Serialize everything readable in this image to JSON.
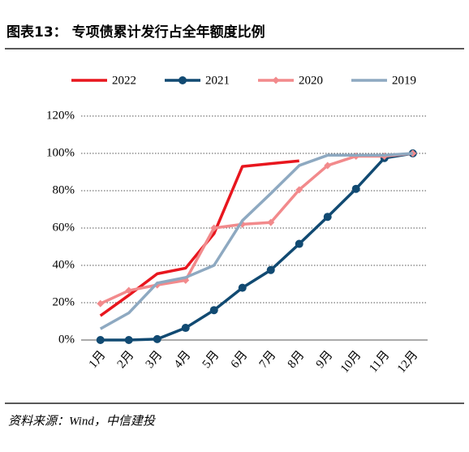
{
  "chart_data": {
    "type": "line",
    "title": "图表13：  专项债累计发行占全年额度比例",
    "source": "资料来源：Wind，中信建投",
    "categories": [
      "1月",
      "2月",
      "3月",
      "4月",
      "5月",
      "6月",
      "7月",
      "8月",
      "9月",
      "10月",
      "11月",
      "12月"
    ],
    "series": [
      {
        "name": "2022",
        "color": "#e8161e",
        "marker": "none",
        "values": [
          13,
          24,
          35.5,
          38.5,
          57,
          93,
          94.5,
          96,
          null,
          null,
          null,
          null
        ]
      },
      {
        "name": "2021",
        "color": "#114a72",
        "marker": "circle",
        "values": [
          0,
          0,
          0.5,
          6.5,
          16,
          28,
          37.5,
          51.5,
          66,
          81,
          97.5,
          100
        ]
      },
      {
        "name": "2020",
        "color": "#f28a8c",
        "marker": "diamond",
        "values": [
          19.5,
          26.5,
          29.5,
          32,
          60,
          62,
          63,
          80.5,
          93.5,
          98.5,
          98.5,
          100
        ]
      },
      {
        "name": "2019",
        "color": "#8ea9c1",
        "marker": "none",
        "values": [
          6,
          14.5,
          30.5,
          33.5,
          40,
          64,
          78.5,
          93.5,
          99,
          99,
          99,
          100
        ]
      }
    ],
    "ylim": [
      0,
      120
    ],
    "yticks": [
      {
        "value": 0,
        "label": "0%"
      },
      {
        "value": 20,
        "label": "20%"
      },
      {
        "value": 40,
        "label": "40%"
      },
      {
        "value": 60,
        "label": "60%"
      },
      {
        "value": 80,
        "label": "80%"
      },
      {
        "value": 100,
        "label": "100%"
      },
      {
        "value": 120,
        "label": "120%"
      }
    ],
    "grid": true,
    "legend": "top"
  }
}
